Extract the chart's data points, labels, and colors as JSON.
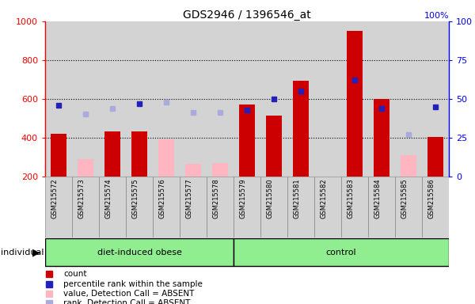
{
  "title": "GDS2946 / 1396546_at",
  "samples": [
    "GSM215572",
    "GSM215573",
    "GSM215574",
    "GSM215575",
    "GSM215576",
    "GSM215577",
    "GSM215578",
    "GSM215579",
    "GSM215580",
    "GSM215581",
    "GSM215582",
    "GSM215583",
    "GSM215584",
    "GSM215585",
    "GSM215586"
  ],
  "groups": [
    "diet-induced obese",
    "diet-induced obese",
    "diet-induced obese",
    "diet-induced obese",
    "diet-induced obese",
    "diet-induced obese",
    "diet-induced obese",
    "control",
    "control",
    "control",
    "control",
    "control",
    "control",
    "control",
    "control"
  ],
  "count_values": [
    420,
    null,
    430,
    430,
    null,
    null,
    null,
    570,
    515,
    695,
    null,
    950,
    600,
    null,
    405
  ],
  "count_absent": [
    null,
    290,
    null,
    null,
    390,
    265,
    270,
    null,
    null,
    null,
    null,
    null,
    null,
    310,
    null
  ],
  "percentile_present": [
    46,
    null,
    null,
    47,
    null,
    null,
    null,
    43,
    50,
    55,
    null,
    62,
    44,
    null,
    45
  ],
  "percentile_absent": [
    null,
    40,
    44,
    null,
    48,
    41,
    41,
    null,
    null,
    null,
    null,
    null,
    null,
    27,
    null
  ],
  "ylim_left": [
    200,
    1000
  ],
  "ylim_right": [
    0,
    100
  ],
  "left_ticks": [
    200,
    400,
    600,
    800,
    1000
  ],
  "right_ticks": [
    0,
    25,
    50,
    75,
    100
  ],
  "bar_color_present": "#cc0000",
  "bar_color_absent": "#ffb6c1",
  "rank_color_present": "#2222bb",
  "rank_color_absent": "#aaaadd",
  "bg_color": "#d3d3d3",
  "plot_bg": "#ffffff",
  "green_color": "#90ee90"
}
